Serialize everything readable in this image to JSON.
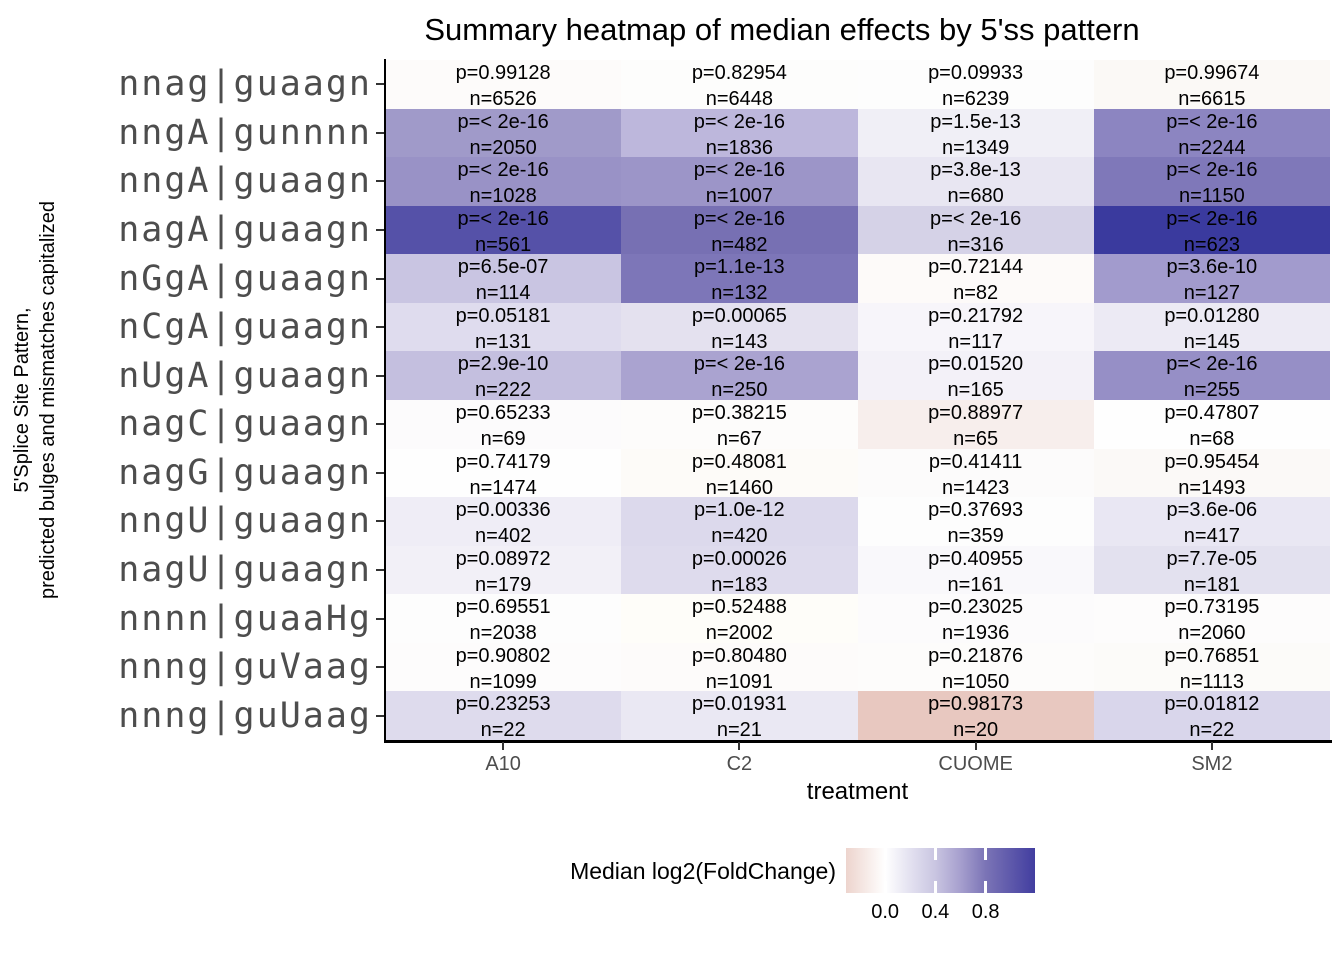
{
  "title": "Summary heatmap of median effects by 5'ss pattern",
  "axes": {
    "x_title": "treatment",
    "y_title_line1": "5'Splice Site Pattern,",
    "y_title_line2": "predicted bulges and mismatches capitalized"
  },
  "chart_data": {
    "type": "heatmap",
    "title": "Summary heatmap of median effects by 5'ss pattern",
    "xlabel": "treatment",
    "ylabel": "5'Splice Site Pattern, predicted bulges and mismatches capitalized",
    "x_categories": [
      "A10",
      "C2",
      "CUOME",
      "SM2"
    ],
    "y_categories": [
      "nnag|guaagn",
      "nngA|gunnnn",
      "nngA|guaagn",
      "nagA|guaagn",
      "nGgA|guaagn",
      "nCgA|guaagn",
      "nUgA|guaagn",
      "nagC|guaagn",
      "nagG|guaagn",
      "nngU|guaagn",
      "nagU|guaagn",
      "nnnn|guaaHg",
      "nnng|guVaag",
      "nnng|guUaag"
    ],
    "rows": [
      {
        "pattern": "nnag|guaagn",
        "cells": [
          {
            "treatment": "A10",
            "p_label": "p=0.99128",
            "n_label": "n=6526",
            "median_log2fc": 0.0,
            "color": "#fdfbfa"
          },
          {
            "treatment": "C2",
            "p_label": "p=0.82954",
            "n_label": "n=6448",
            "median_log2fc": 0.0,
            "color": "#fdfdfc"
          },
          {
            "treatment": "CUOME",
            "p_label": "p=0.09933",
            "n_label": "n=6239",
            "median_log2fc": 0.0,
            "color": "#fdfdfd"
          },
          {
            "treatment": "SM2",
            "p_label": "p=0.99674",
            "n_label": "n=6615",
            "median_log2fc": 0.0,
            "color": "#fbf9f6"
          }
        ]
      },
      {
        "pattern": "nngA|gunnnn",
        "cells": [
          {
            "treatment": "A10",
            "p_label": "p=< 2e-16",
            "n_label": "n=2050",
            "median_log2fc": 0.62,
            "color": "#a09ac9"
          },
          {
            "treatment": "C2",
            "p_label": "p=< 2e-16",
            "n_label": "n=1836",
            "median_log2fc": 0.44,
            "color": "#bdb7dc"
          },
          {
            "treatment": "CUOME",
            "p_label": "p=1.5e-13",
            "n_label": "n=1349",
            "median_log2fc": 0.09,
            "color": "#f0eff6"
          },
          {
            "treatment": "SM2",
            "p_label": "p=< 2e-16",
            "n_label": "n=2244",
            "median_log2fc": 0.74,
            "color": "#8c85c1"
          }
        ]
      },
      {
        "pattern": "nngA|guaagn",
        "cells": [
          {
            "treatment": "A10",
            "p_label": "p=< 2e-16",
            "n_label": "n=1028",
            "median_log2fc": 0.66,
            "color": "#9992c6"
          },
          {
            "treatment": "C2",
            "p_label": "p=< 2e-16",
            "n_label": "n=1007",
            "median_log2fc": 0.64,
            "color": "#9c95c8"
          },
          {
            "treatment": "CUOME",
            "p_label": "p=3.8e-13",
            "n_label": "n=680",
            "median_log2fc": 0.15,
            "color": "#e8e6f2"
          },
          {
            "treatment": "SM2",
            "p_label": "p=< 2e-16",
            "n_label": "n=1150",
            "median_log2fc": 0.82,
            "color": "#7f78b9"
          }
        ]
      },
      {
        "pattern": "nagA|guaagn",
        "cells": [
          {
            "treatment": "A10",
            "p_label": "p=< 2e-16",
            "n_label": "n=561",
            "median_log2fc": 0.98,
            "color": "#5551a8"
          },
          {
            "treatment": "C2",
            "p_label": "p=< 2e-16",
            "n_label": "n=482",
            "median_log2fc": 0.84,
            "color": "#7770b3"
          },
          {
            "treatment": "CUOME",
            "p_label": "p=< 2e-16",
            "n_label": "n=316",
            "median_log2fc": 0.27,
            "color": "#d5d2e7"
          },
          {
            "treatment": "SM2",
            "p_label": "p=< 2e-16",
            "n_label": "n=623",
            "median_log2fc": 1.15,
            "color": "#3a3a9e"
          }
        ]
      },
      {
        "pattern": "nGgA|guaagn",
        "cells": [
          {
            "treatment": "A10",
            "p_label": "p=6.5e-07",
            "n_label": "n=114",
            "median_log2fc": 0.35,
            "color": "#c9c5e2"
          },
          {
            "treatment": "C2",
            "p_label": "p=1.1e-13",
            "n_label": "n=132",
            "median_log2fc": 0.83,
            "color": "#7d76b8"
          },
          {
            "treatment": "CUOME",
            "p_label": "p=0.72144",
            "n_label": "n=82",
            "median_log2fc": 0.0,
            "color": "#fdfaf9"
          },
          {
            "treatment": "SM2",
            "p_label": "p=3.6e-10",
            "n_label": "n=127",
            "median_log2fc": 0.6,
            "color": "#a29bcd"
          }
        ]
      },
      {
        "pattern": "nCgA|guaagn",
        "cells": [
          {
            "treatment": "A10",
            "p_label": "p=0.05181",
            "n_label": "n=131",
            "median_log2fc": 0.2,
            "color": "#dfdcee"
          },
          {
            "treatment": "C2",
            "p_label": "p=0.00065",
            "n_label": "n=143",
            "median_log2fc": 0.17,
            "color": "#e4e1ef"
          },
          {
            "treatment": "CUOME",
            "p_label": "p=0.21792",
            "n_label": "n=117",
            "median_log2fc": 0.04,
            "color": "#f7f5fa"
          },
          {
            "treatment": "SM2",
            "p_label": "p=0.01280",
            "n_label": "n=145",
            "median_log2fc": 0.12,
            "color": "#eceaf4"
          }
        ]
      },
      {
        "pattern": "nUgA|guaagn",
        "cells": [
          {
            "treatment": "A10",
            "p_label": "p=2.9e-10",
            "n_label": "n=222",
            "median_log2fc": 0.36,
            "color": "#c4bfdf"
          },
          {
            "treatment": "C2",
            "p_label": "p=< 2e-16",
            "n_label": "n=250",
            "median_log2fc": 0.54,
            "color": "#aaa3d0"
          },
          {
            "treatment": "CUOME",
            "p_label": "p=0.01520",
            "n_label": "n=165",
            "median_log2fc": 0.08,
            "color": "#f3f1f8"
          },
          {
            "treatment": "SM2",
            "p_label": "p=< 2e-16",
            "n_label": "n=255",
            "median_log2fc": 0.68,
            "color": "#968fc6"
          }
        ]
      },
      {
        "pattern": "nagC|guaagn",
        "cells": [
          {
            "treatment": "A10",
            "p_label": "p=0.65233",
            "n_label": "n=69",
            "median_log2fc": 0.01,
            "color": "#fcfbfc"
          },
          {
            "treatment": "C2",
            "p_label": "p=0.38215",
            "n_label": "n=67",
            "median_log2fc": 0.01,
            "color": "#fdfcfb"
          },
          {
            "treatment": "CUOME",
            "p_label": "p=0.88977",
            "n_label": "n=65",
            "median_log2fc": -0.04,
            "color": "#f7eeec"
          },
          {
            "treatment": "SM2",
            "p_label": "p=0.47807",
            "n_label": "n=68",
            "median_log2fc": 0.0,
            "color": "#fefefe"
          }
        ]
      },
      {
        "pattern": "nagG|guaagn",
        "cells": [
          {
            "treatment": "A10",
            "p_label": "p=0.74179",
            "n_label": "n=1474",
            "median_log2fc": 0.0,
            "color": "#fefefe"
          },
          {
            "treatment": "C2",
            "p_label": "p=0.48081",
            "n_label": "n=1460",
            "median_log2fc": 0.0,
            "color": "#fdfbf8"
          },
          {
            "treatment": "CUOME",
            "p_label": "p=0.41411",
            "n_label": "n=1423",
            "median_log2fc": 0.0,
            "color": "#fcfbfb"
          },
          {
            "treatment": "SM2",
            "p_label": "p=0.95454",
            "n_label": "n=1493",
            "median_log2fc": 0.0,
            "color": "#fbf9f7"
          }
        ]
      },
      {
        "pattern": "nngU|guaagn",
        "cells": [
          {
            "treatment": "A10",
            "p_label": "p=0.00336",
            "n_label": "n=402",
            "median_log2fc": 0.1,
            "color": "#efedf6"
          },
          {
            "treatment": "C2",
            "p_label": "p=1.0e-12",
            "n_label": "n=420",
            "median_log2fc": 0.22,
            "color": "#dcd9ec"
          },
          {
            "treatment": "CUOME",
            "p_label": "p=0.37693",
            "n_label": "n=359",
            "median_log2fc": 0.0,
            "color": "#fdfdfd"
          },
          {
            "treatment": "SM2",
            "p_label": "p=3.6e-06",
            "n_label": "n=417",
            "median_log2fc": 0.14,
            "color": "#e9e7f3"
          }
        ]
      },
      {
        "pattern": "nagU|guaagn",
        "cells": [
          {
            "treatment": "A10",
            "p_label": "p=0.08972",
            "n_label": "n=179",
            "median_log2fc": 0.08,
            "color": "#f2f0f7"
          },
          {
            "treatment": "C2",
            "p_label": "p=0.00026",
            "n_label": "n=183",
            "median_log2fc": 0.21,
            "color": "#dedbed"
          },
          {
            "treatment": "CUOME",
            "p_label": "p=0.40955",
            "n_label": "n=161",
            "median_log2fc": 0.03,
            "color": "#f9f8fb"
          },
          {
            "treatment": "SM2",
            "p_label": "p=7.7e-05",
            "n_label": "n=181",
            "median_log2fc": 0.18,
            "color": "#e3e1ef"
          }
        ]
      },
      {
        "pattern": "nnnn|guaaHg",
        "cells": [
          {
            "treatment": "A10",
            "p_label": "p=0.69551",
            "n_label": "n=2038",
            "median_log2fc": 0.0,
            "color": "#fdfdfd"
          },
          {
            "treatment": "C2",
            "p_label": "p=0.52488",
            "n_label": "n=2002",
            "median_log2fc": 0.0,
            "color": "#fefdf9"
          },
          {
            "treatment": "CUOME",
            "p_label": "p=0.23025",
            "n_label": "n=1936",
            "median_log2fc": 0.0,
            "color": "#fcfbfc"
          },
          {
            "treatment": "SM2",
            "p_label": "p=0.73195",
            "n_label": "n=2060",
            "median_log2fc": 0.0,
            "color": "#fdfcfc"
          }
        ]
      },
      {
        "pattern": "nnng|guVaag",
        "cells": [
          {
            "treatment": "A10",
            "p_label": "p=0.90802",
            "n_label": "n=1099",
            "median_log2fc": 0.0,
            "color": "#fdfcfc"
          },
          {
            "treatment": "C2",
            "p_label": "p=0.80480",
            "n_label": "n=1091",
            "median_log2fc": 0.0,
            "color": "#fdfbfa"
          },
          {
            "treatment": "CUOME",
            "p_label": "p=0.21876",
            "n_label": "n=1050",
            "median_log2fc": 0.0,
            "color": "#fdfcfb"
          },
          {
            "treatment": "SM2",
            "p_label": "p=0.76851",
            "n_label": "n=1113",
            "median_log2fc": 0.0,
            "color": "#fcfbf9"
          }
        ]
      },
      {
        "pattern": "nnng|guUaag",
        "cells": [
          {
            "treatment": "A10",
            "p_label": "p=0.23253",
            "n_label": "n=22",
            "median_log2fc": 0.21,
            "color": "#dedbed"
          },
          {
            "treatment": "C2",
            "p_label": "p=0.01931",
            "n_label": "n=21",
            "median_log2fc": 0.13,
            "color": "#eae8f3"
          },
          {
            "treatment": "CUOME",
            "p_label": "p=0.98173",
            "n_label": "n=20",
            "median_log2fc": -0.16,
            "color": "#e8c8c0"
          },
          {
            "treatment": "SM2",
            "p_label": "p=0.01812",
            "n_label": "n=22",
            "median_log2fc": 0.24,
            "color": "#d9d6eb"
          }
        ]
      }
    ],
    "colorbar": {
      "title": "Median log2(FoldChange)",
      "tick_labels": [
        "0.0",
        "0.4",
        "0.8"
      ],
      "tick_values": [
        0.0,
        0.4,
        0.8
      ],
      "tick_positions_pct": [
        20.7,
        47.3,
        73.9
      ],
      "range": [
        -0.31,
        1.19
      ],
      "gradient_stops": [
        {
          "pos": 0,
          "color": "#edd4cd"
        },
        {
          "pos": 20.7,
          "color": "#ffffff"
        },
        {
          "pos": 34,
          "color": "#e3e1f0"
        },
        {
          "pos": 47.3,
          "color": "#c9c5e1"
        },
        {
          "pos": 60,
          "color": "#a8a1cf"
        },
        {
          "pos": 73.9,
          "color": "#7b74b6"
        },
        {
          "pos": 100,
          "color": "#423ea0"
        }
      ]
    }
  }
}
